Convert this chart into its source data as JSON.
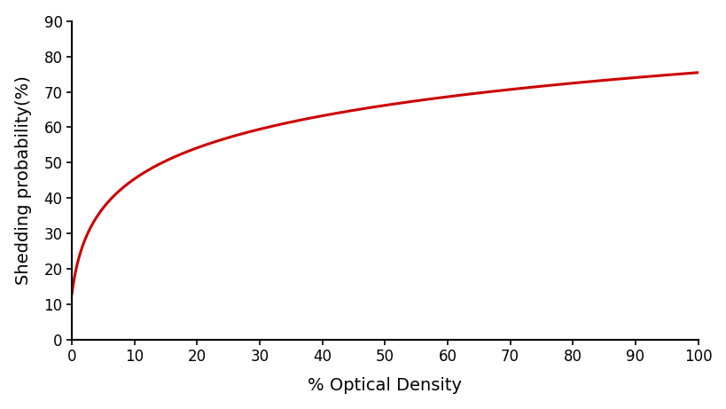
{
  "xlabel": "% Optical Density",
  "ylabel": "Shedding probability(%)",
  "line_color": "#cc0000",
  "line_width": 2.2,
  "xlim": [
    0,
    100
  ],
  "ylim": [
    0,
    90
  ],
  "xticks": [
    0,
    10,
    20,
    30,
    40,
    50,
    60,
    70,
    80,
    90,
    100
  ],
  "yticks": [
    0,
    10,
    20,
    30,
    40,
    50,
    60,
    70,
    80,
    90
  ],
  "background_color": "#ffffff",
  "logit_intercept": -1.87,
  "logit_slope": 1.05,
  "x_start": 0.0,
  "x_end": 100.0,
  "num_points": 1000,
  "xlabel_fontsize": 14,
  "ylabel_fontsize": 14,
  "tick_labelsize": 12
}
